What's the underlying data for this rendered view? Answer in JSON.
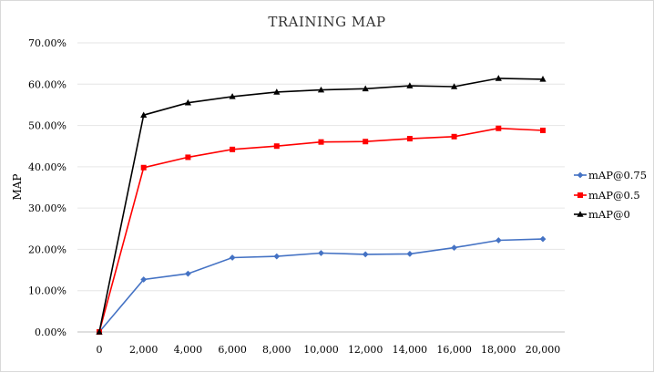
{
  "chart_data": {
    "type": "line",
    "title": "TRAINING MAP",
    "xlabel": "",
    "ylabel": "MAP",
    "x": [
      0,
      2000,
      4000,
      6000,
      8000,
      10000,
      12000,
      14000,
      16000,
      18000,
      20000
    ],
    "x_tick_labels": [
      "0",
      "2,000",
      "4,000",
      "6,000",
      "8,000",
      "10,000",
      "12,000",
      "14,000",
      "16,000",
      "18,000",
      "20,000"
    ],
    "y_tick_labels": [
      "0.00%",
      "10.00%",
      "20.00%",
      "30.00%",
      "40.00%",
      "50.00%",
      "60.00%",
      "70.00%"
    ],
    "ylim": [
      0,
      0.7
    ],
    "y_ticks": [
      0,
      0.1,
      0.2,
      0.3,
      0.4,
      0.5,
      0.6,
      0.7
    ],
    "grid": true,
    "legend_position": "right",
    "series": [
      {
        "name": "mAP@0.75",
        "color": "#4472c4",
        "marker": "diamond",
        "values": [
          0.0,
          0.127,
          0.141,
          0.18,
          0.183,
          0.191,
          0.188,
          0.189,
          0.204,
          0.222,
          0.225
        ]
      },
      {
        "name": "mAP@0.5",
        "color": "#ff0000",
        "marker": "square",
        "values": [
          0.0,
          0.398,
          0.423,
          0.442,
          0.45,
          0.46,
          0.461,
          0.468,
          0.473,
          0.493,
          0.488
        ]
      },
      {
        "name": "mAP@0",
        "color": "#000000",
        "marker": "triangle",
        "values": [
          0.0,
          0.525,
          0.555,
          0.57,
          0.581,
          0.586,
          0.589,
          0.596,
          0.594,
          0.614,
          0.612
        ]
      }
    ]
  }
}
